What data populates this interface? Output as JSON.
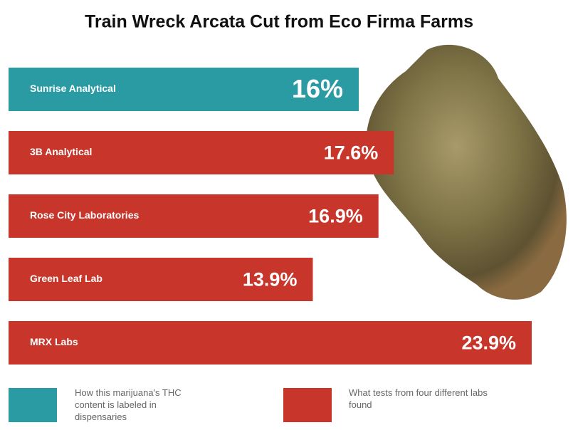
{
  "chart_data": {
    "type": "bar",
    "orientation": "horizontal",
    "title": "Train Wreck Arcata Cut from Eco Firma Farms",
    "categories": [
      "Sunrise Analytical",
      "3B Analytical",
      "Rose City Laboratories",
      "Green Leaf Lab",
      "MRX Labs"
    ],
    "values": [
      16,
      17.6,
      16.9,
      13.9,
      23.9
    ],
    "value_labels": [
      "16%",
      "17.6%",
      "16.9%",
      "13.9%",
      "23.9%"
    ],
    "colors": [
      "#2a9ba3",
      "#c8352a",
      "#c8352a",
      "#c8352a",
      "#c8352a"
    ],
    "legend": [
      {
        "label": "How this marijuana's THC content is labeled in dispensaries",
        "color": "#2a9ba3"
      },
      {
        "label": "What tests from four different labs found",
        "color": "#c8352a"
      }
    ]
  }
}
